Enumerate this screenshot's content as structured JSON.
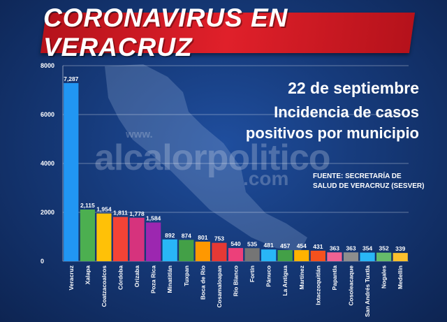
{
  "header": {
    "title": "CORONAVIRUS EN VERACRUZ"
  },
  "info": {
    "date": "22 de septiembre",
    "line1": "Incidencia de casos",
    "line2": "positivos por municipio",
    "source_line1": "FUENTE: SECRETARÍA DE",
    "source_line2": "SALUD DE VERACRUZ (SESVER)"
  },
  "watermark": {
    "www": "www.",
    "main": "alcalorpolitico",
    "com": ".com"
  },
  "chart_data": {
    "type": "bar",
    "categories": [
      "Veracruz",
      "Xalapa",
      "Coatzacoalcos",
      "Córdoba",
      "Orizaba",
      "Poza Rica",
      "Minatitlán",
      "Tuxpan",
      "Boca de Río",
      "Cosamaloapan",
      "Río Blanco",
      "Fortín",
      "Pánuco",
      "La Antigua",
      "Martínez",
      "Ixtaczoquitlán",
      "Papantla",
      "Cosoleacaque",
      "San Andrés Tuxtla",
      "Nogales",
      "Medellín"
    ],
    "values": [
      7287,
      2115,
      1954,
      1811,
      1778,
      1584,
      892,
      874,
      801,
      753,
      540,
      535,
      481,
      457,
      454,
      431,
      363,
      363,
      354,
      352,
      339
    ],
    "value_labels": [
      "7,287",
      "2,115",
      "1,954",
      "1,811",
      "1,778",
      "1,584",
      "892",
      "874",
      "801",
      "753",
      "540",
      "535",
      "481",
      "457",
      "454",
      "431",
      "363",
      "363",
      "354",
      "352",
      "339"
    ],
    "colors": [
      "#2196f3",
      "#4caf50",
      "#ffc107",
      "#f44336",
      "#d6337d",
      "#9c27b0",
      "#29b6f6",
      "#43a047",
      "#ff9800",
      "#e53935",
      "#ec407a",
      "#757575",
      "#29b6f6",
      "#43a047",
      "#ffb300",
      "#f4511e",
      "#f06292",
      "#8d8d8d",
      "#29b6f6",
      "#66bb6a",
      "#fbc02d"
    ],
    "yticks": [
      0,
      2000,
      4000,
      6000,
      8000
    ],
    "ylim": [
      0,
      8000
    ],
    "grid": true
  }
}
